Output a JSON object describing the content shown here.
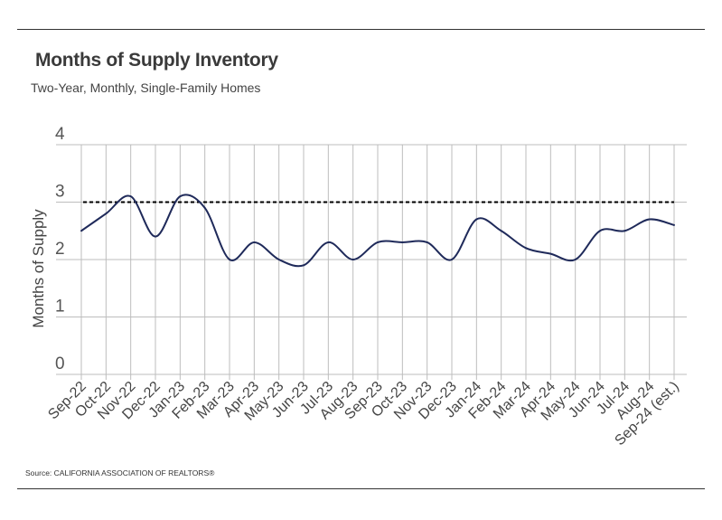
{
  "header": {
    "title": "Months of Supply Inventory",
    "subtitle": "Two-Year, Monthly, Single-Family Homes"
  },
  "footer": {
    "source": "Source:  CALIFORNIA ASSOCIATION OF REALTORS®"
  },
  "chart_data": {
    "type": "line",
    "title": "Months of Supply Inventory",
    "subtitle": "Two-Year, Monthly, Single-Family Homes",
    "ylabel": "Months of Supply",
    "xlabel": "",
    "ylim": [
      0,
      4
    ],
    "yticks": [
      0,
      1,
      2,
      3,
      4
    ],
    "grid": true,
    "legend": "none",
    "categories": [
      "Sep-22",
      "Oct-22",
      "Nov-22",
      "Dec-22",
      "Jan-23",
      "Feb-23",
      "Mar-23",
      "Apr-23",
      "May-23",
      "Jun-23",
      "Jul-23",
      "Aug-23",
      "Sep-23",
      "Oct-23",
      "Nov-23",
      "Dec-23",
      "Jan-24",
      "Feb-24",
      "Mar-24",
      "Apr-24",
      "May-24",
      "Jun-24",
      "Jul-24",
      "Aug-24",
      "Sep-24 (est.)"
    ],
    "series": [
      {
        "values": [
          2.5,
          2.8,
          3.1,
          2.4,
          3.1,
          2.9,
          2.0,
          2.3,
          2.0,
          1.9,
          2.3,
          2.0,
          2.3,
          2.3,
          2.3,
          2.0,
          2.7,
          2.5,
          2.2,
          2.1,
          2.0,
          2.5,
          2.5,
          2.7,
          2.6
        ],
        "color": "#1f2a5a"
      }
    ],
    "reference_line": {
      "value": 3.0,
      "style": "dashed",
      "color": "#000000"
    }
  }
}
